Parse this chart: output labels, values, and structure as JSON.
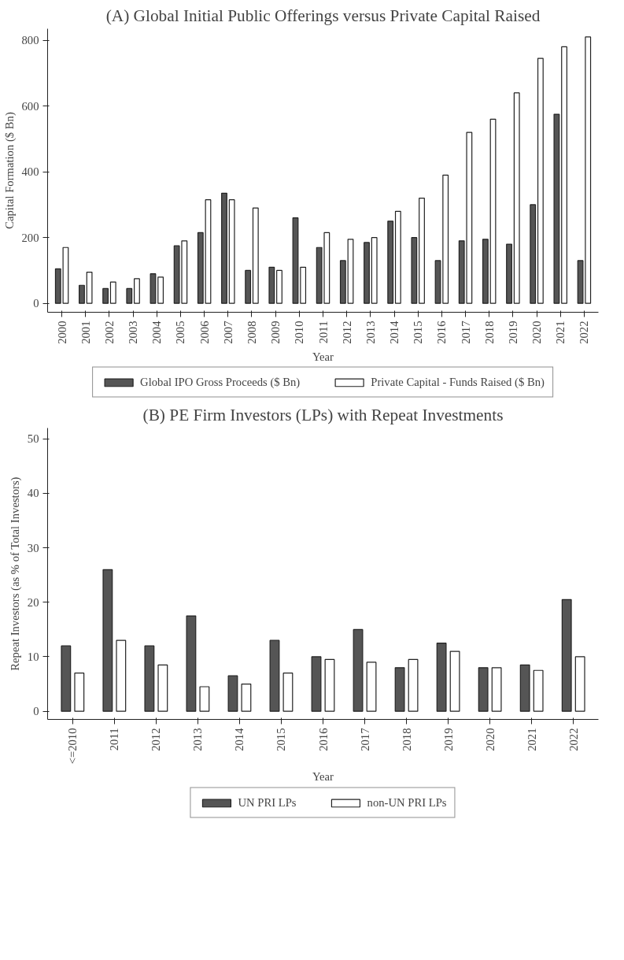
{
  "chart_data": [
    {
      "type": "bar",
      "title": "(A) Global Initial Public Offerings versus Private Capital Raised",
      "xlabel": "Year",
      "ylabel": "Capital Formation ($ Bn)",
      "categories": [
        "2000",
        "2001",
        "2002",
        "2003",
        "2004",
        "2005",
        "2006",
        "2007",
        "2008",
        "2009",
        "2010",
        "2011",
        "2012",
        "2013",
        "2014",
        "2015",
        "2016",
        "2017",
        "2018",
        "2019",
        "2020",
        "2021",
        "2022"
      ],
      "series": [
        {
          "name": "Global IPO Gross Proceeds ($ Bn)",
          "color": "#555555",
          "values": [
            105,
            55,
            45,
            45,
            90,
            175,
            215,
            335,
            100,
            110,
            260,
            170,
            130,
            185,
            250,
            200,
            130,
            190,
            195,
            180,
            300,
            575,
            130
          ]
        },
        {
          "name": "Private Capital - Funds Raised ($ Bn)",
          "color": "#ffffff",
          "values": [
            170,
            95,
            65,
            75,
            80,
            190,
            315,
            315,
            290,
            100,
            110,
            215,
            195,
            200,
            280,
            320,
            390,
            520,
            560,
            640,
            745,
            780,
            810
          ]
        }
      ],
      "ylim": [
        -27,
        835
      ],
      "yticks": [
        0,
        200,
        400,
        600,
        800
      ],
      "legend": "bottom"
    },
    {
      "type": "bar",
      "title": "(B) PE Firm Investors (LPs) with Repeat Investments",
      "xlabel": "Year",
      "ylabel": "Repeat Investors (as % of Total Investors)",
      "categories": [
        "<=2010",
        "2011",
        "2012",
        "2013",
        "2014",
        "2015",
        "2016",
        "2017",
        "2018",
        "2019",
        "2020",
        "2021",
        "2022"
      ],
      "series": [
        {
          "name": "UN PRI LPs",
          "color": "#555555",
          "values": [
            12,
            26,
            12,
            17.5,
            6.5,
            13,
            10,
            15,
            8,
            12.5,
            8,
            8.5,
            20.5
          ]
        },
        {
          "name": "non-UN PRI LPs",
          "color": "#ffffff",
          "values": [
            7,
            13,
            8.5,
            4.5,
            5,
            7,
            9.5,
            9,
            9.5,
            11,
            8,
            7.5,
            10
          ]
        }
      ],
      "ylim": [
        -1.5,
        52
      ],
      "yticks": [
        0,
        10,
        20,
        30,
        40,
        50
      ],
      "legend": "bottom"
    }
  ]
}
